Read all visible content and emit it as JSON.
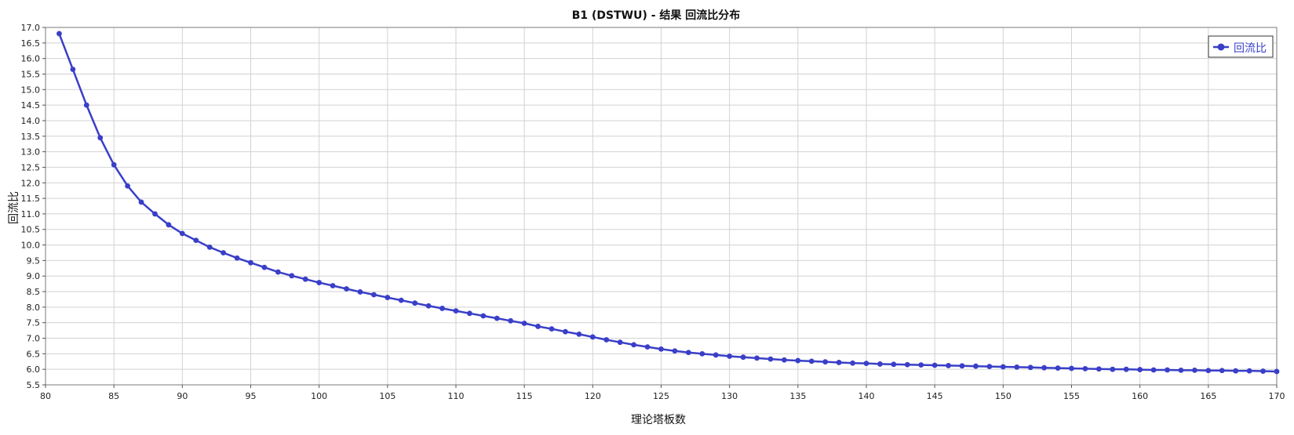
{
  "chart_data": {
    "type": "line",
    "title": "B1 (DSTWU) - 结果 回流比分布",
    "xlabel": "理论塔板数",
    "ylabel": "回流比",
    "xlim": [
      80,
      170
    ],
    "ylim": [
      5.5,
      17.0
    ],
    "x_ticks": [
      "80",
      "85",
      "90",
      "95",
      "100",
      "105",
      "110",
      "115",
      "120",
      "125",
      "130",
      "135",
      "140",
      "145",
      "150",
      "155",
      "160",
      "165",
      "170"
    ],
    "y_ticks": [
      "5.5",
      "6.0",
      "6.5",
      "7.0",
      "7.5",
      "8.0",
      "8.5",
      "9.0",
      "9.5",
      "10.0",
      "10.5",
      "11.0",
      "11.5",
      "12.0",
      "12.5",
      "13.0",
      "13.5",
      "14.0",
      "14.5",
      "15.0",
      "15.5",
      "16.0",
      "16.5",
      "17.0"
    ],
    "grid": true,
    "legend_position": "top-right",
    "series": [
      {
        "name": "回流比",
        "color": "#3a3fc8",
        "marker": "circle",
        "x": [
          81,
          82,
          83,
          84,
          85,
          86,
          87,
          88,
          89,
          90,
          91,
          92,
          93,
          94,
          95,
          96,
          97,
          98,
          99,
          100,
          101,
          102,
          103,
          104,
          105,
          106,
          107,
          108,
          109,
          110,
          111,
          112,
          113,
          114,
          115,
          116,
          117,
          118,
          119,
          120,
          121,
          122,
          123,
          124,
          125,
          126,
          127,
          128,
          129,
          130,
          131,
          132,
          133,
          134,
          135,
          136,
          137,
          138,
          139,
          140,
          141,
          142,
          143,
          144,
          145,
          146,
          147,
          148,
          149,
          150,
          151,
          152,
          153,
          154,
          155,
          156,
          157,
          158,
          159,
          160,
          161,
          162,
          163,
          164,
          165,
          166,
          167,
          168,
          169,
          170
        ],
        "values": [
          16.8,
          15.65,
          14.5,
          13.45,
          12.58,
          11.9,
          11.38,
          11.0,
          10.65,
          10.37,
          10.15,
          9.93,
          9.75,
          9.58,
          9.43,
          9.28,
          9.13,
          9.01,
          8.9,
          8.79,
          8.69,
          8.59,
          8.49,
          8.4,
          8.31,
          8.22,
          8.13,
          8.04,
          7.96,
          7.88,
          7.8,
          7.72,
          7.64,
          7.56,
          7.48,
          7.38,
          7.3,
          7.21,
          7.13,
          7.04,
          6.95,
          6.87,
          6.79,
          6.72,
          6.65,
          6.59,
          6.54,
          6.5,
          6.46,
          6.42,
          6.39,
          6.36,
          6.33,
          6.3,
          6.28,
          6.26,
          6.24,
          6.22,
          6.2,
          6.19,
          6.17,
          6.16,
          6.15,
          6.14,
          6.13,
          6.12,
          6.11,
          6.1,
          6.09,
          6.08,
          6.07,
          6.06,
          6.05,
          6.04,
          6.03,
          6.02,
          6.01,
          6.0,
          6.0,
          5.99,
          5.98,
          5.98,
          5.97,
          5.97,
          5.96,
          5.96,
          5.95,
          5.95,
          5.94,
          5.93
        ]
      }
    ]
  }
}
